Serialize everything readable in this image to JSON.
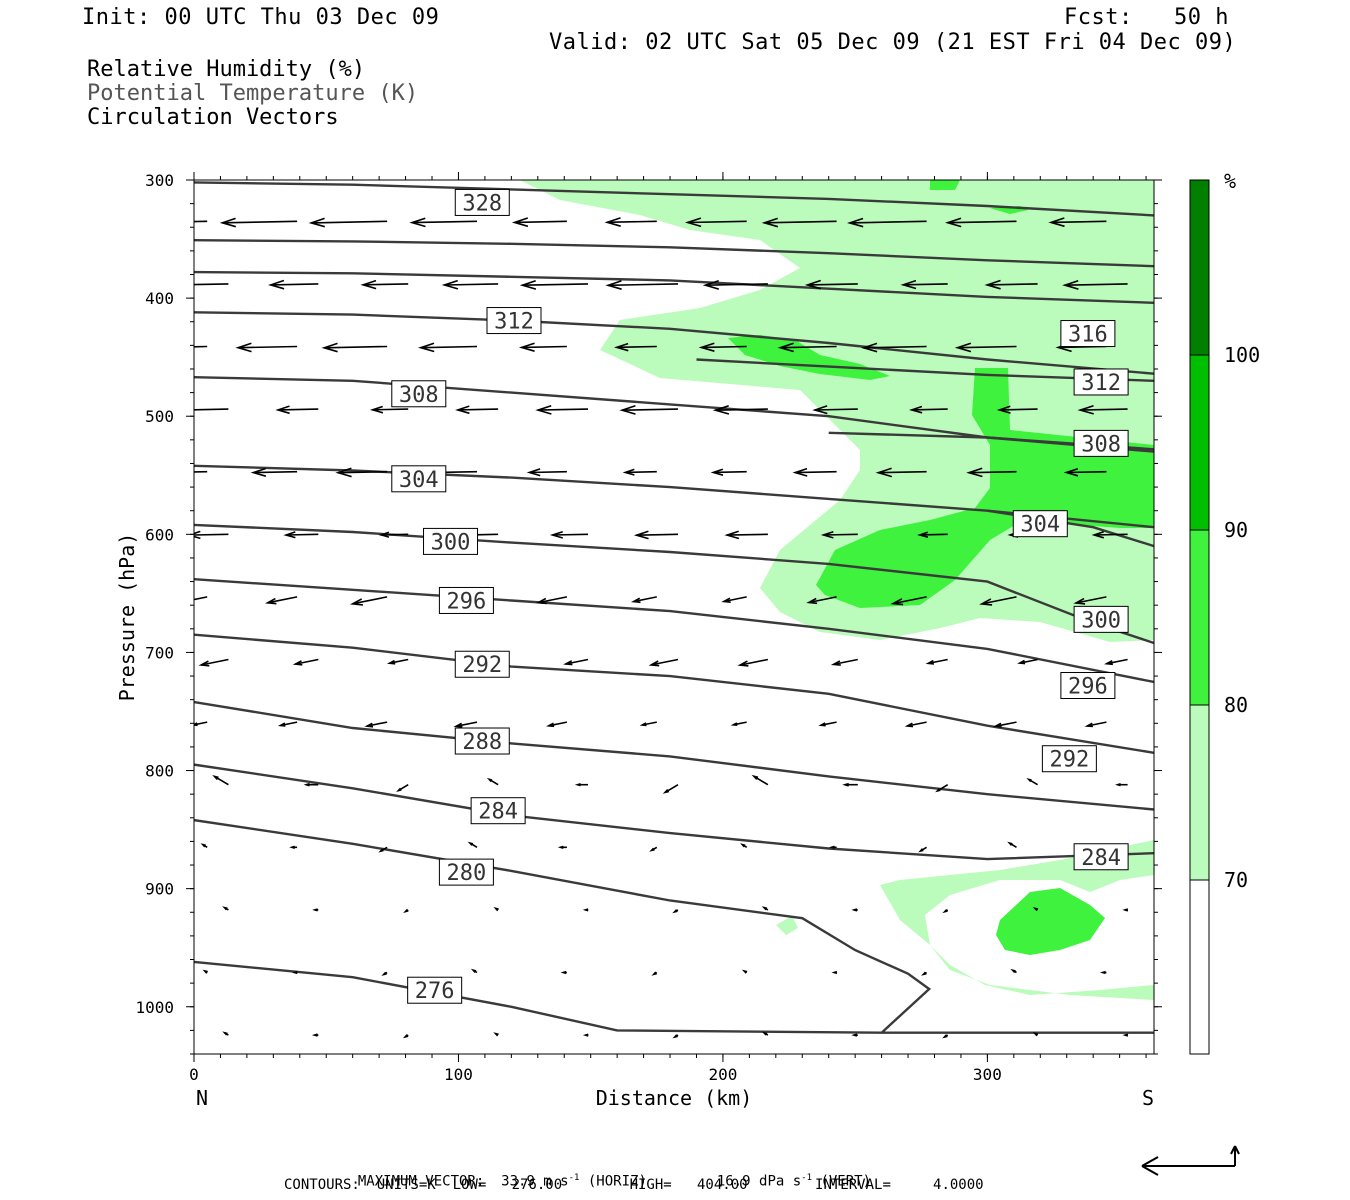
{
  "header": {
    "init": "Init: 00 UTC Thu 03 Dec 09",
    "fcst": "Fcst:   50 h",
    "valid": "Valid: 02 UTC Sat 05 Dec 09 (21 EST Fri 04 Dec 09)"
  },
  "legend": {
    "line1": "Relative Humidity (%)",
    "line2": "Potential Temperature (K)",
    "line3": "Circulation Vectors"
  },
  "footer": {
    "max_vector_label": "MAXIMUM VECTOR:",
    "horiz_value": "33.9 m s",
    "horiz_exp": "-1",
    "horiz_tag": " (HORIZ)",
    "vert_value": "16.9 dPa s",
    "vert_exp": "-1",
    "vert_tag": " (VERT)",
    "contours": "CONTOURS:  UNITS=K  LOW=   276.00        HIGH=   404.00        INTERVAL=     4.0000"
  },
  "colors": {
    "rh70": "#bbfbbb",
    "rh80": "#3ef23e",
    "rh90": "#00bf00",
    "rh100": "#007f00",
    "contour": "#3a3a3a"
  },
  "chart_data": {
    "type": "cross-section",
    "xlabel": "Distance (km)",
    "ylabel": "Pressure (hPa)",
    "xlim": [
      0,
      363
    ],
    "ylim": [
      1040,
      300
    ],
    "x_ticks": [
      0,
      100,
      200,
      300
    ],
    "y_ticks": [
      300,
      400,
      500,
      600,
      700,
      800,
      900,
      1000
    ],
    "end_labels": {
      "left": "N",
      "right": "S"
    },
    "colorbar": {
      "unit": "%",
      "ticks": [
        "70",
        "80",
        "90",
        "100"
      ]
    },
    "theta_contours": [
      {
        "label": "328",
        "label_at": [
          109,
          319
        ],
        "points": [
          [
            0,
            302
          ],
          [
            60,
            304
          ],
          [
            120,
            308
          ],
          [
            180,
            312
          ],
          [
            240,
            316
          ],
          [
            300,
            322
          ],
          [
            363,
            330
          ]
        ]
      },
      {
        "label": "",
        "label_at": null,
        "points": [
          [
            0,
            351
          ],
          [
            60,
            352
          ],
          [
            120,
            354
          ],
          [
            180,
            357
          ],
          [
            240,
            362
          ],
          [
            300,
            368
          ],
          [
            363,
            373
          ]
        ]
      },
      {
        "label": "",
        "label_at": null,
        "points": [
          [
            0,
            378
          ],
          [
            60,
            379
          ],
          [
            120,
            382
          ],
          [
            180,
            385
          ],
          [
            240,
            392
          ],
          [
            300,
            399
          ],
          [
            363,
            404
          ]
        ]
      },
      {
        "label": "312",
        "label_at": [
          121,
          419
        ],
        "points": [
          [
            0,
            412
          ],
          [
            60,
            414
          ],
          [
            120,
            419
          ],
          [
            180,
            426
          ],
          [
            240,
            438
          ],
          [
            300,
            452
          ],
          [
            363,
            464
          ]
        ]
      },
      {
        "label": "316",
        "label_at": [
          338,
          430
        ],
        "points": [
          [
            0,
            412
          ],
          [
            0,
            412
          ]
        ]
      },
      {
        "label": "308",
        "label_at": [
          85,
          481
        ],
        "points": [
          [
            0,
            467
          ],
          [
            60,
            470
          ],
          [
            120,
            480
          ],
          [
            180,
            490
          ],
          [
            240,
            500
          ],
          [
            300,
            518
          ],
          [
            363,
            530
          ]
        ]
      },
      {
        "label": "312",
        "label_at": [
          343,
          471
        ],
        "points": [
          [
            190,
            452
          ],
          [
            240,
            458
          ],
          [
            300,
            465
          ],
          [
            363,
            470
          ]
        ]
      },
      {
        "label": "308",
        "label_at": [
          343,
          523
        ],
        "points": [
          [
            240,
            514
          ],
          [
            300,
            518
          ],
          [
            363,
            528
          ]
        ]
      },
      {
        "label": "304",
        "label_at": [
          85,
          553
        ],
        "points": [
          [
            0,
            542
          ],
          [
            60,
            546
          ],
          [
            120,
            552
          ],
          [
            180,
            560
          ],
          [
            240,
            570
          ],
          [
            300,
            580
          ],
          [
            363,
            594
          ]
        ]
      },
      {
        "label": "304",
        "label_at": [
          320,
          591
        ],
        "points": [
          [
            300,
            580
          ],
          [
            340,
            594
          ],
          [
            363,
            610
          ]
        ]
      },
      {
        "label": "300",
        "label_at": [
          97,
          606
        ],
        "points": [
          [
            0,
            592
          ],
          [
            60,
            598
          ],
          [
            120,
            607
          ],
          [
            180,
            615
          ],
          [
            240,
            625
          ],
          [
            300,
            640
          ],
          [
            340,
            675
          ],
          [
            363,
            692
          ]
        ]
      },
      {
        "label": "300",
        "label_at": [
          343,
          672
        ],
        "points": [
          [
            363,
            692
          ]
        ]
      },
      {
        "label": "296",
        "label_at": [
          103,
          656
        ],
        "points": [
          [
            0,
            638
          ],
          [
            60,
            647
          ],
          [
            120,
            656
          ],
          [
            180,
            665
          ],
          [
            240,
            680
          ],
          [
            300,
            697
          ],
          [
            363,
            725
          ]
        ]
      },
      {
        "label": "296",
        "label_at": [
          338,
          728
        ],
        "points": [
          [
            363,
            725
          ]
        ]
      },
      {
        "label": "292",
        "label_at": [
          109,
          710
        ],
        "points": [
          [
            0,
            685
          ],
          [
            60,
            696
          ],
          [
            120,
            712
          ],
          [
            180,
            720
          ],
          [
            240,
            735
          ],
          [
            300,
            762
          ],
          [
            363,
            785
          ]
        ]
      },
      {
        "label": "292",
        "label_at": [
          331,
          790
        ],
        "points": [
          [
            363,
            785
          ]
        ]
      },
      {
        "label": "288",
        "label_at": [
          109,
          775
        ],
        "points": [
          [
            0,
            742
          ],
          [
            60,
            764
          ],
          [
            120,
            777
          ],
          [
            180,
            788
          ],
          [
            240,
            805
          ],
          [
            300,
            820
          ],
          [
            363,
            833
          ]
        ]
      },
      {
        "label": "284",
        "label_at": [
          115,
          834
        ],
        "points": [
          [
            0,
            795
          ],
          [
            60,
            815
          ],
          [
            120,
            838
          ],
          [
            180,
            853
          ],
          [
            240,
            866
          ],
          [
            300,
            875
          ],
          [
            363,
            870
          ]
        ]
      },
      {
        "label": "284",
        "label_at": [
          343,
          873
        ],
        "points": [
          [
            363,
            870
          ]
        ]
      },
      {
        "label": "280",
        "label_at": [
          103,
          886
        ],
        "points": [
          [
            0,
            842
          ],
          [
            60,
            862
          ],
          [
            120,
            885
          ],
          [
            180,
            910
          ],
          [
            230,
            925
          ],
          [
            250,
            952
          ],
          [
            270,
            972
          ],
          [
            278,
            985
          ],
          [
            260,
            1022
          ]
        ]
      },
      {
        "label": "276",
        "label_at": [
          91,
          986
        ],
        "points": [
          [
            0,
            962
          ],
          [
            60,
            975
          ],
          [
            120,
            1000
          ],
          [
            160,
            1020
          ],
          [
            260,
            1022
          ],
          [
            363,
            1022
          ]
        ]
      }
    ],
    "rh_regions_note": "RH shading: 70-80 light green, 80-90 medium green, 90-100 green"
  }
}
